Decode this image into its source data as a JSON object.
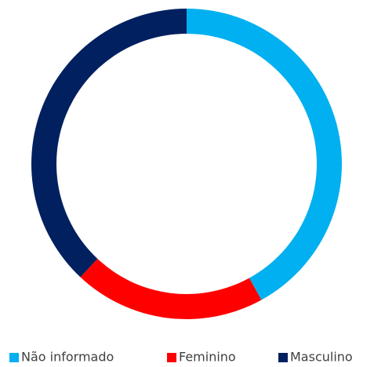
{
  "chart_data": {
    "type": "donut",
    "categories": [
      "Não informado",
      "Feminino",
      "Masculino"
    ],
    "values": [
      42,
      20,
      38
    ],
    "colors": [
      "#00b0f0",
      "#ff0000",
      "#002060"
    ],
    "legend": "bottom"
  }
}
